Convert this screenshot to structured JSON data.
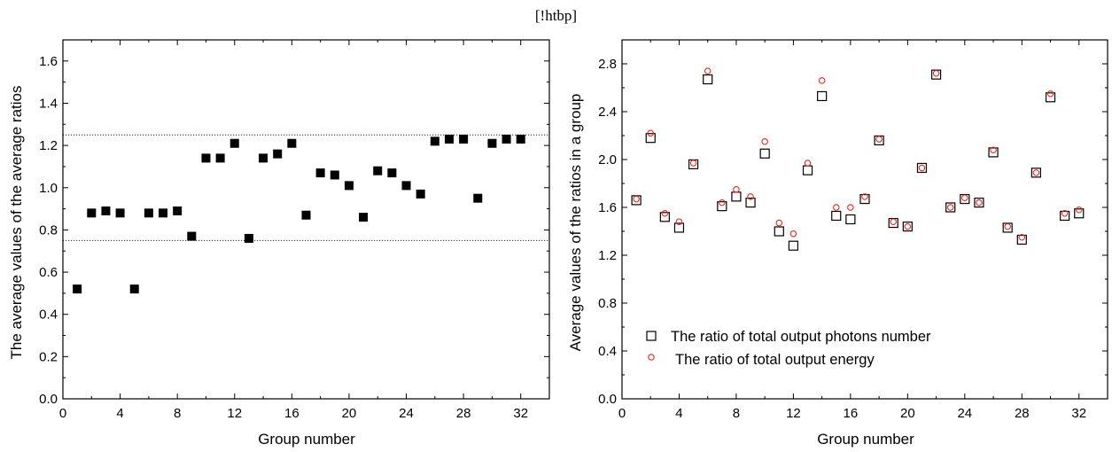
{
  "caption": "[!htbp]",
  "chart_data": [
    {
      "type": "scatter",
      "title": "",
      "xlabel": "Group number",
      "ylabel": "The average values of the average ratios",
      "xlim": [
        0,
        34
      ],
      "ylim": [
        0,
        1.7
      ],
      "xticks": [
        0,
        4,
        8,
        12,
        16,
        20,
        24,
        28,
        32
      ],
      "yticks": [
        0.0,
        0.2,
        0.4,
        0.6,
        0.8,
        1.0,
        1.2,
        1.4,
        1.6
      ],
      "reference_lines": [
        0.75,
        1.25
      ],
      "series": [
        {
          "marker": "filled-square",
          "color": "#000000",
          "x": [
            1,
            2,
            3,
            4,
            5,
            6,
            7,
            8,
            9,
            10,
            11,
            12,
            13,
            14,
            15,
            16,
            17,
            18,
            19,
            20,
            21,
            22,
            23,
            24,
            25,
            26,
            27,
            28,
            29,
            30,
            31,
            32
          ],
          "y": [
            0.52,
            0.88,
            0.89,
            0.88,
            0.52,
            0.88,
            0.88,
            0.89,
            0.77,
            1.14,
            1.14,
            1.21,
            0.76,
            1.14,
            1.16,
            1.21,
            0.87,
            1.07,
            1.06,
            1.01,
            0.86,
            1.08,
            1.07,
            1.01,
            0.97,
            1.22,
            1.23,
            1.23,
            0.95,
            1.21,
            1.23,
            1.23
          ]
        }
      ]
    },
    {
      "type": "scatter",
      "title": "",
      "xlabel": "Group number",
      "ylabel": "Average values of the ratios in a group",
      "xlim": [
        0,
        34
      ],
      "ylim": [
        0,
        3.0
      ],
      "xticks": [
        0,
        4,
        8,
        12,
        16,
        20,
        24,
        28,
        32
      ],
      "yticks": [
        0.0,
        0.4,
        0.8,
        1.2,
        1.6,
        2.0,
        2.4,
        2.8
      ],
      "legend_position": "bottom-left",
      "series": [
        {
          "name": "The ratio of total output photons number",
          "marker": "open-square",
          "color": "#000000",
          "x": [
            1,
            2,
            3,
            4,
            5,
            6,
            7,
            8,
            9,
            10,
            11,
            12,
            13,
            14,
            15,
            16,
            17,
            18,
            19,
            20,
            21,
            22,
            23,
            24,
            25,
            26,
            27,
            28,
            29,
            30,
            31,
            32
          ],
          "y": [
            1.66,
            2.18,
            1.52,
            1.43,
            1.96,
            2.67,
            1.61,
            1.69,
            1.64,
            2.05,
            1.4,
            1.28,
            1.91,
            2.53,
            1.53,
            1.5,
            1.67,
            2.16,
            1.47,
            1.44,
            1.93,
            2.71,
            1.6,
            1.67,
            1.64,
            2.06,
            1.43,
            1.33,
            1.89,
            2.52,
            1.53,
            1.55
          ]
        },
        {
          "name": "The ratio of total output energy",
          "marker": "open-circle",
          "color": "#e8281e",
          "x": [
            1,
            2,
            3,
            4,
            5,
            6,
            7,
            8,
            9,
            10,
            11,
            12,
            13,
            14,
            15,
            16,
            17,
            18,
            19,
            20,
            21,
            22,
            23,
            24,
            25,
            26,
            27,
            28,
            29,
            30,
            31,
            32
          ],
          "y": [
            1.67,
            2.22,
            1.55,
            1.48,
            1.97,
            2.74,
            1.64,
            1.75,
            1.69,
            2.15,
            1.47,
            1.38,
            1.97,
            2.66,
            1.6,
            1.6,
            1.69,
            2.17,
            1.48,
            1.44,
            1.93,
            2.72,
            1.6,
            1.68,
            1.64,
            2.08,
            1.44,
            1.35,
            1.89,
            2.55,
            1.55,
            1.58
          ]
        }
      ]
    }
  ]
}
